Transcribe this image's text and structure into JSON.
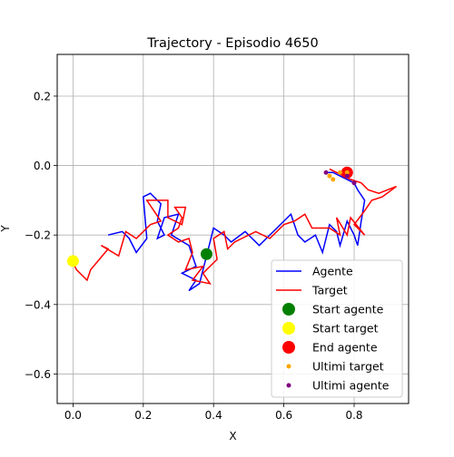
{
  "chart_data": {
    "type": "line",
    "title": "Trajectory - Episodio 4650",
    "xlabel": "X",
    "ylabel": "Y",
    "xlim": [
      -0.045,
      0.955
    ],
    "ylim": [
      -0.685,
      0.32
    ],
    "xticks": [
      0.0,
      0.2,
      0.4,
      0.6,
      0.8
    ],
    "yticks": [
      0.2,
      0.0,
      -0.2,
      -0.4,
      -0.6
    ],
    "xtick_labels": [
      "0.0",
      "0.2",
      "0.4",
      "0.6",
      "0.8"
    ],
    "ytick_labels": [
      "0.2",
      "0.0",
      "−0.2",
      "−0.4",
      "−0.6"
    ],
    "grid": true,
    "legend_position": "lower-right",
    "series": [
      {
        "name": "Agente",
        "color": "#0000ff",
        "kind": "line",
        "points": [
          [
            0.1,
            -0.2
          ],
          [
            0.14,
            -0.19
          ],
          [
            0.16,
            -0.21
          ],
          [
            0.18,
            -0.25
          ],
          [
            0.21,
            -0.21
          ],
          [
            0.2,
            -0.09
          ],
          [
            0.22,
            -0.08
          ],
          [
            0.25,
            -0.11
          ],
          [
            0.24,
            -0.16
          ],
          [
            0.26,
            -0.2
          ],
          [
            0.24,
            -0.21
          ],
          [
            0.26,
            -0.15
          ],
          [
            0.3,
            -0.14
          ],
          [
            0.28,
            -0.2
          ],
          [
            0.33,
            -0.23
          ],
          [
            0.35,
            -0.29
          ],
          [
            0.31,
            -0.31
          ],
          [
            0.35,
            -0.33
          ],
          [
            0.33,
            -0.36
          ],
          [
            0.36,
            -0.34
          ],
          [
            0.38,
            -0.26
          ],
          [
            0.4,
            -0.18
          ],
          [
            0.43,
            -0.2
          ],
          [
            0.45,
            -0.22
          ],
          [
            0.49,
            -0.19
          ],
          [
            0.53,
            -0.23
          ],
          [
            0.57,
            -0.19
          ],
          [
            0.62,
            -0.14
          ],
          [
            0.64,
            -0.2
          ],
          [
            0.66,
            -0.22
          ],
          [
            0.69,
            -0.2
          ],
          [
            0.71,
            -0.25
          ],
          [
            0.73,
            -0.17
          ],
          [
            0.75,
            -0.19
          ],
          [
            0.76,
            -0.23
          ],
          [
            0.78,
            -0.16
          ],
          [
            0.8,
            -0.2
          ],
          [
            0.81,
            -0.23
          ],
          [
            0.82,
            -0.16
          ],
          [
            0.83,
            -0.1
          ],
          [
            0.81,
            -0.07
          ],
          [
            0.8,
            -0.05
          ],
          [
            0.78,
            -0.04
          ],
          [
            0.76,
            -0.03
          ],
          [
            0.74,
            -0.02
          ],
          [
            0.72,
            -0.02
          ]
        ]
      },
      {
        "name": "Target",
        "color": "#ff0000",
        "kind": "line",
        "points": [
          [
            0.0,
            -0.28
          ],
          [
            0.01,
            -0.3
          ],
          [
            0.04,
            -0.33
          ],
          [
            0.05,
            -0.3
          ],
          [
            0.1,
            -0.24
          ],
          [
            0.08,
            -0.23
          ],
          [
            0.13,
            -0.26
          ],
          [
            0.15,
            -0.19
          ],
          [
            0.18,
            -0.21
          ],
          [
            0.22,
            -0.17
          ],
          [
            0.25,
            -0.16
          ],
          [
            0.21,
            -0.1
          ],
          [
            0.27,
            -0.1
          ],
          [
            0.27,
            -0.15
          ],
          [
            0.31,
            -0.17
          ],
          [
            0.32,
            -0.12
          ],
          [
            0.29,
            -0.12
          ],
          [
            0.31,
            -0.15
          ],
          [
            0.3,
            -0.18
          ],
          [
            0.27,
            -0.2
          ],
          [
            0.3,
            -0.22
          ],
          [
            0.33,
            -0.21
          ],
          [
            0.34,
            -0.25
          ],
          [
            0.32,
            -0.3
          ],
          [
            0.37,
            -0.29
          ],
          [
            0.34,
            -0.33
          ],
          [
            0.39,
            -0.34
          ],
          [
            0.37,
            -0.31
          ],
          [
            0.41,
            -0.27
          ],
          [
            0.4,
            -0.21
          ],
          [
            0.43,
            -0.19
          ],
          [
            0.44,
            -0.24
          ],
          [
            0.46,
            -0.22
          ],
          [
            0.48,
            -0.21
          ],
          [
            0.52,
            -0.19
          ],
          [
            0.56,
            -0.21
          ],
          [
            0.6,
            -0.17
          ],
          [
            0.63,
            -0.16
          ],
          [
            0.66,
            -0.14
          ],
          [
            0.68,
            -0.18
          ],
          [
            0.73,
            -0.18
          ],
          [
            0.76,
            -0.2
          ],
          [
            0.75,
            -0.15
          ],
          [
            0.78,
            -0.2
          ],
          [
            0.79,
            -0.15
          ],
          [
            0.83,
            -0.2
          ],
          [
            0.8,
            -0.17
          ],
          [
            0.83,
            -0.13
          ],
          [
            0.85,
            -0.1
          ],
          [
            0.88,
            -0.09
          ],
          [
            0.92,
            -0.06
          ],
          [
            0.87,
            -0.08
          ],
          [
            0.84,
            -0.07
          ],
          [
            0.82,
            -0.05
          ],
          [
            0.79,
            -0.04
          ],
          [
            0.77,
            -0.03
          ],
          [
            0.75,
            -0.02
          ],
          [
            0.73,
            -0.01
          ]
        ]
      },
      {
        "name": "Start agente",
        "color": "#008000",
        "kind": "marker",
        "size": "large",
        "points": [
          [
            0.38,
            -0.255
          ]
        ]
      },
      {
        "name": "Start target",
        "color": "#ffff00",
        "kind": "marker",
        "size": "large",
        "points": [
          [
            0.0,
            -0.275
          ]
        ]
      },
      {
        "name": "End agente",
        "color": "#ff0000",
        "kind": "marker",
        "size": "large",
        "points": [
          [
            0.78,
            -0.02
          ]
        ]
      },
      {
        "name": "Ultimi target",
        "color": "#ffa500",
        "kind": "marker",
        "size": "small",
        "points": [
          [
            0.73,
            -0.03
          ],
          [
            0.74,
            -0.04
          ],
          [
            0.76,
            -0.02
          ],
          [
            0.78,
            -0.02
          ]
        ]
      },
      {
        "name": "Ultimi agente",
        "color": "#800080",
        "kind": "marker",
        "size": "small",
        "points": [
          [
            0.72,
            -0.02
          ],
          [
            0.78,
            -0.03
          ],
          [
            0.8,
            -0.05
          ]
        ]
      }
    ]
  }
}
